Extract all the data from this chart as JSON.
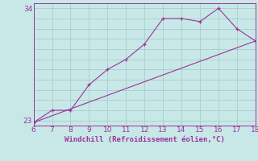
{
  "line1_x": [
    6,
    7,
    8,
    9,
    10,
    11,
    12,
    13,
    14,
    15,
    16,
    17,
    18
  ],
  "line1_y": [
    22.8,
    24.0,
    24.0,
    26.5,
    28.0,
    29.0,
    30.5,
    33.0,
    33.0,
    32.7,
    34.0,
    32.0,
    30.8
  ],
  "line2_x": [
    6,
    18
  ],
  "line2_y": [
    22.8,
    30.8
  ],
  "xlabel": "Windchill (Refroidissement éolien,°C)",
  "xlim": [
    6,
    18
  ],
  "ylim": [
    22.5,
    34.5
  ],
  "xticks": [
    6,
    7,
    8,
    9,
    10,
    11,
    12,
    13,
    14,
    15,
    16,
    17,
    18
  ],
  "yticks": [
    23,
    34
  ],
  "bg_color": "#c8e8e8",
  "grid_color": "#aacccc",
  "line_color": "#993399",
  "tick_label_color": "#993399",
  "xlabel_color": "#993399"
}
